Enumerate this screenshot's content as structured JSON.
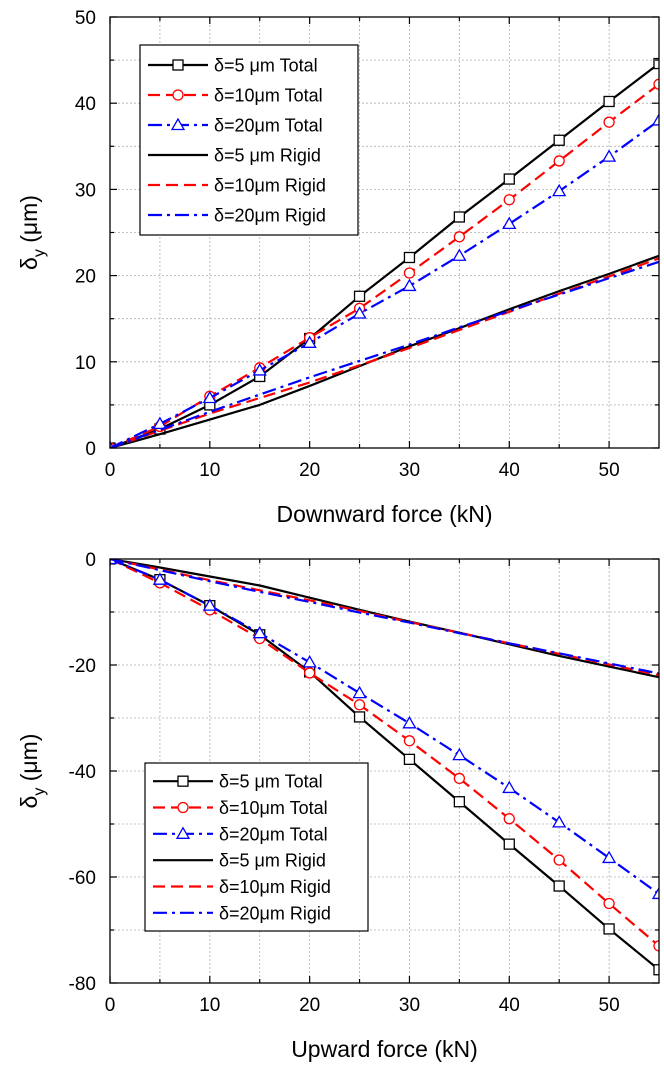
{
  "chart_data": [
    {
      "type": "line",
      "xlabel": "Downward force (kN)",
      "ylabel_main": "δ",
      "ylabel_sub": "y",
      "ylabel_unit": "(μm)",
      "xlim": [
        0,
        55
      ],
      "ylim": [
        0,
        50
      ],
      "xticks": [
        0,
        10,
        20,
        30,
        40,
        50
      ],
      "yticks": [
        0,
        10,
        20,
        30,
        40,
        50
      ],
      "grid": true,
      "legend_position": "top-left",
      "series": [
        {
          "name": "δ=5  μm Total",
          "color": "#000000",
          "dash": "solid",
          "marker": "square",
          "x": [
            0,
            5,
            10,
            15,
            20,
            25,
            30,
            35,
            40,
            45,
            50,
            55
          ],
          "y": [
            0,
            2.2,
            5.0,
            8.3,
            12.7,
            17.6,
            22.1,
            26.8,
            31.2,
            35.7,
            40.2,
            44.6
          ]
        },
        {
          "name": "δ=10μm Total",
          "color": "#ff0000",
          "dash": "dashed",
          "marker": "circle",
          "x": [
            0,
            5,
            10,
            15,
            20,
            25,
            30,
            35,
            40,
            45,
            50,
            55
          ],
          "y": [
            0,
            2.5,
            6.0,
            9.3,
            12.8,
            16.2,
            20.3,
            24.5,
            28.8,
            33.3,
            37.8,
            42.2
          ]
        },
        {
          "name": "δ=20μm Total",
          "color": "#0000ff",
          "dash": "dashdot",
          "marker": "triangle",
          "x": [
            0,
            5,
            10,
            15,
            20,
            25,
            30,
            35,
            40,
            45,
            50,
            55
          ],
          "y": [
            0,
            2.8,
            5.8,
            9.0,
            12.2,
            15.6,
            18.8,
            22.3,
            26.0,
            29.8,
            33.8,
            38.0
          ]
        },
        {
          "name": "δ=5  μm Rigid",
          "color": "#000000",
          "dash": "solid",
          "marker": "none",
          "x": [
            0,
            5,
            10,
            15,
            20,
            25,
            30,
            35,
            40,
            45,
            50,
            55
          ],
          "y": [
            0,
            1.6,
            3.3,
            5.0,
            7.2,
            9.5,
            11.8,
            13.9,
            16.1,
            18.2,
            20.2,
            22.3
          ]
        },
        {
          "name": "δ=10μm Rigid",
          "color": "#ff0000",
          "dash": "dashed",
          "marker": "none",
          "x": [
            0,
            5,
            10,
            15,
            20,
            25,
            30,
            35,
            40,
            45,
            50,
            55
          ],
          "y": [
            0,
            2.0,
            4.0,
            5.8,
            7.6,
            9.6,
            11.6,
            13.7,
            15.8,
            17.9,
            19.9,
            22.0
          ]
        },
        {
          "name": "δ=20μm Rigid",
          "color": "#0000ff",
          "dash": "dashdot",
          "marker": "none",
          "x": [
            0,
            5,
            10,
            15,
            20,
            25,
            30,
            35,
            40,
            45,
            50,
            55
          ],
          "y": [
            0,
            2.1,
            4.2,
            6.2,
            8.2,
            10.1,
            12.0,
            14.0,
            15.9,
            17.8,
            19.7,
            21.6
          ]
        }
      ]
    },
    {
      "type": "line",
      "xlabel": "Upward force (kN)",
      "ylabel_main": "δ",
      "ylabel_sub": "y",
      "ylabel_unit": "(μm)",
      "xlim": [
        0,
        55
      ],
      "ylim": [
        -80,
        0
      ],
      "xticks": [
        0,
        10,
        20,
        30,
        40,
        50
      ],
      "yticks": [
        0,
        -20,
        -40,
        -60,
        -80
      ],
      "grid": true,
      "legend_position": "bottom-left",
      "series": [
        {
          "name": "δ=5  μm Total",
          "color": "#000000",
          "dash": "solid",
          "marker": "square",
          "x": [
            0,
            5,
            10,
            15,
            20,
            25,
            30,
            35,
            40,
            45,
            50,
            55
          ],
          "y": [
            0,
            -3.9,
            -8.8,
            -14.3,
            -21.3,
            -29.8,
            -37.8,
            -45.8,
            -53.8,
            -61.7,
            -69.8,
            -77.5
          ]
        },
        {
          "name": "δ=10μm Total",
          "color": "#ff0000",
          "dash": "dashed",
          "marker": "circle",
          "x": [
            0,
            5,
            10,
            15,
            20,
            25,
            30,
            35,
            40,
            45,
            50,
            55
          ],
          "y": [
            0,
            -4.5,
            -9.6,
            -15.0,
            -21.5,
            -27.5,
            -34.3,
            -41.4,
            -49.0,
            -56.8,
            -65.0,
            -73.0
          ]
        },
        {
          "name": "δ=20μm Total",
          "color": "#0000ff",
          "dash": "dashdot",
          "marker": "triangle",
          "x": [
            0,
            5,
            10,
            15,
            20,
            25,
            30,
            35,
            40,
            45,
            50,
            55
          ],
          "y": [
            0,
            -3.9,
            -8.8,
            -14.0,
            -19.5,
            -25.3,
            -31.0,
            -37.0,
            -43.2,
            -49.7,
            -56.4,
            -63.2
          ]
        },
        {
          "name": "δ=5  μm Rigid",
          "color": "#000000",
          "dash": "solid",
          "marker": "none",
          "x": [
            0,
            5,
            10,
            15,
            20,
            25,
            30,
            35,
            40,
            45,
            50,
            55
          ],
          "y": [
            0,
            -1.6,
            -3.3,
            -5.0,
            -7.3,
            -9.6,
            -11.8,
            -13.9,
            -16.1,
            -18.3,
            -20.3,
            -22.3
          ]
        },
        {
          "name": "δ=10μm Rigid",
          "color": "#ff0000",
          "dash": "dashed",
          "marker": "none",
          "x": [
            0,
            5,
            10,
            15,
            20,
            25,
            30,
            35,
            40,
            45,
            50,
            55
          ],
          "y": [
            0,
            -2.0,
            -4.0,
            -5.9,
            -7.8,
            -9.8,
            -11.9,
            -13.9,
            -15.9,
            -17.9,
            -19.9,
            -21.9
          ]
        },
        {
          "name": "δ=20μm Rigid",
          "color": "#0000ff",
          "dash": "dashdot",
          "marker": "none",
          "x": [
            0,
            5,
            10,
            15,
            20,
            25,
            30,
            35,
            40,
            45,
            50,
            55
          ],
          "y": [
            0,
            -2.1,
            -4.2,
            -6.2,
            -8.1,
            -10.1,
            -12.0,
            -14.0,
            -15.9,
            -17.8,
            -19.7,
            -21.6
          ]
        }
      ]
    }
  ]
}
